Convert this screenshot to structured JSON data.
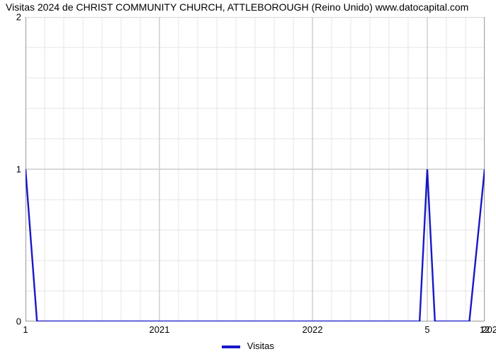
{
  "chart": {
    "type": "line",
    "title": "Visitas 2024 de CHRIST COMMUNITY CHURCH, ATTLEBOROUGH (Reino Unido) www.datocapital.com",
    "title_fontsize": 14,
    "background_color": "#ffffff",
    "plot_bg": "#ffffff",
    "grid_major_color": "#cccccc",
    "grid_minor_color": "#e6e6e6",
    "axis_color": "#808080",
    "ylim": [
      0,
      2
    ],
    "yticks": [
      0,
      1,
      2
    ],
    "yticklabels": [
      "0",
      "1",
      "2"
    ],
    "xlim": [
      0,
      24
    ],
    "xticks_labeled": [
      {
        "pos": 0,
        "label": "1"
      },
      {
        "pos": 7,
        "label": "2021"
      },
      {
        "pos": 15,
        "label": "2022"
      },
      {
        "pos": 21,
        "label": "5"
      },
      {
        "pos": 24,
        "label": "12"
      }
    ],
    "right_overflow_label": "202",
    "x_minor_every": 1,
    "series": [
      {
        "name": "Visitas",
        "color": "#1818c8",
        "line_width": 2.4,
        "data_x": [
          0,
          0.6,
          19.6,
          20.6,
          21,
          21.4,
          23.2,
          24
        ],
        "data_y": [
          1,
          0,
          0,
          0,
          1,
          0,
          0,
          1
        ]
      }
    ],
    "legend": {
      "label": "Visitas",
      "swatch_color": "#1818c8",
      "text_color": "#000000",
      "fontsize": 13
    }
  }
}
